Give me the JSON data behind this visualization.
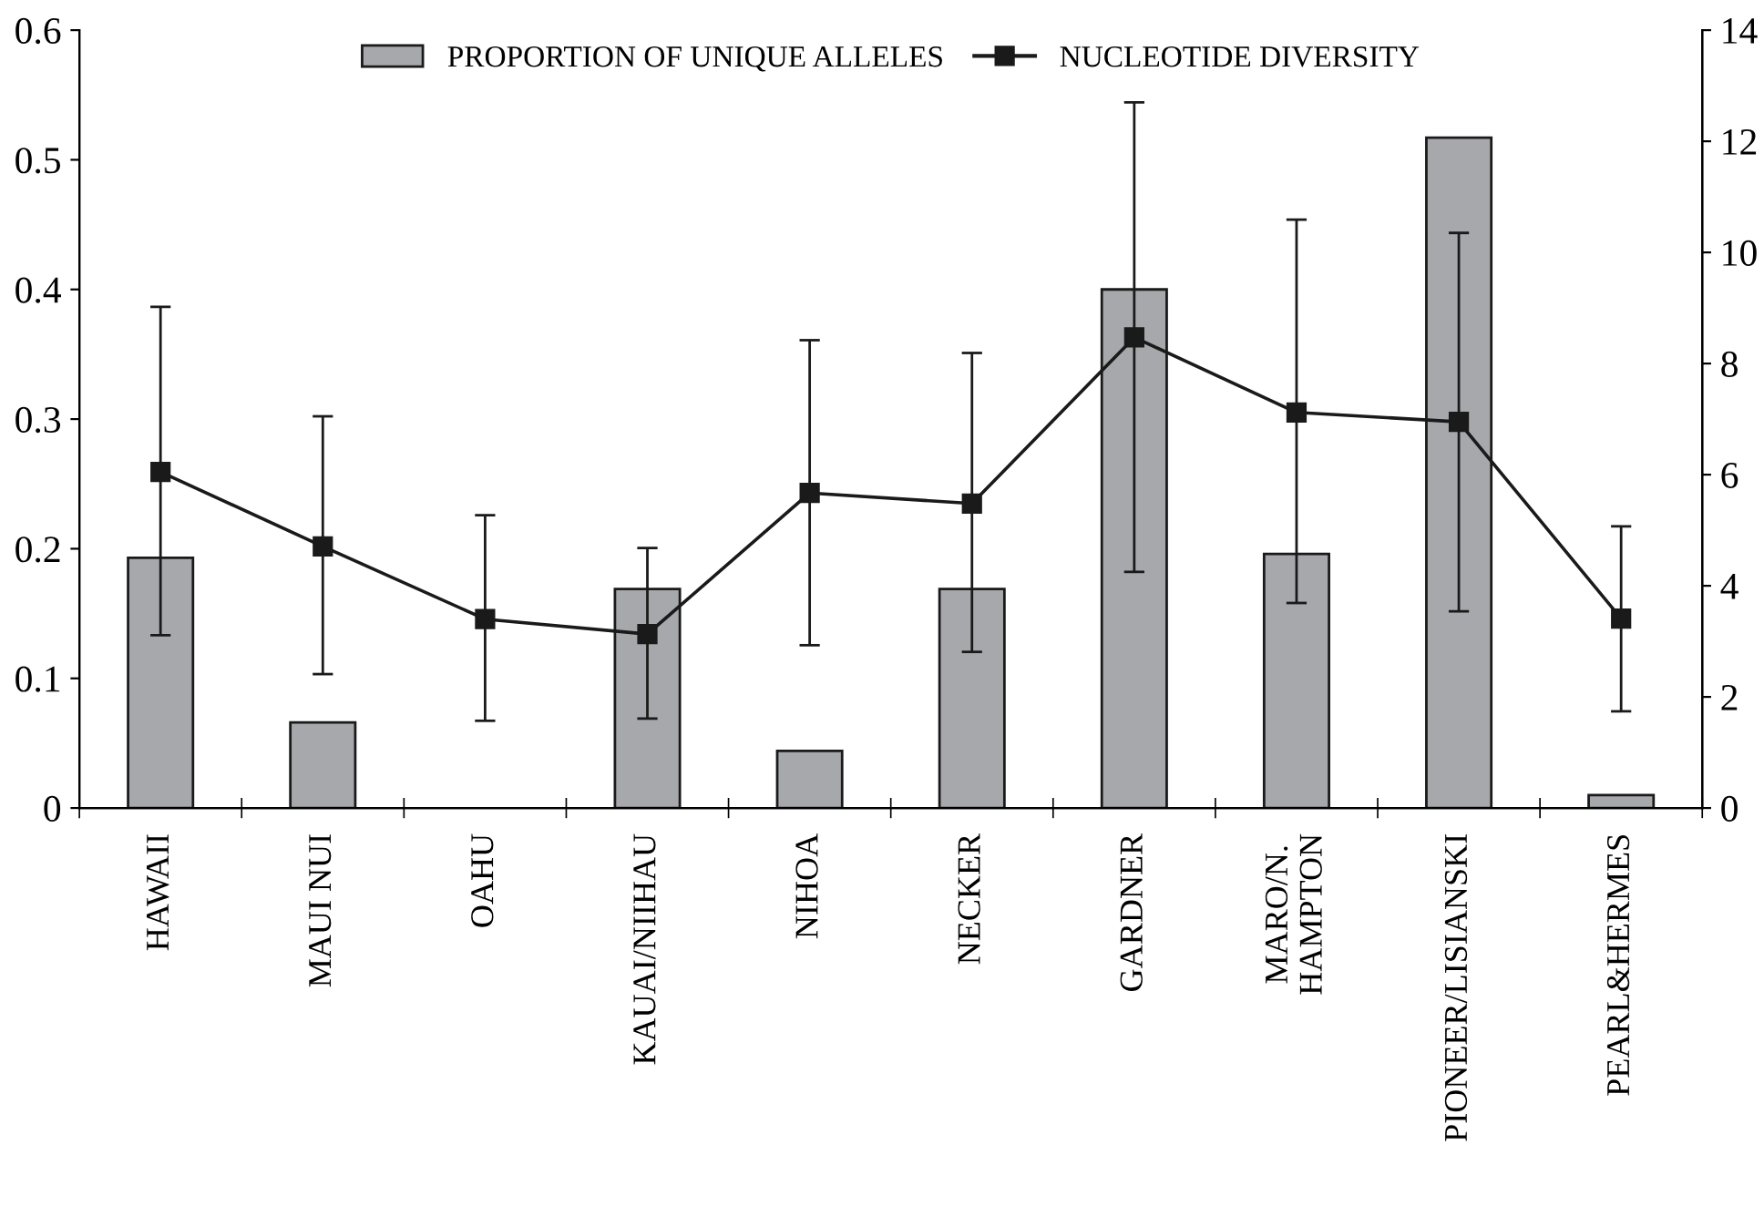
{
  "chart_data": {
    "type": "bar",
    "categories": [
      "HAWAII",
      "MAUI NUI",
      "OAHU",
      "KAUAI/NIIHAU",
      "NIHOA",
      "NECKER",
      "GARDNER",
      "MARO/N.\nHAMPTON",
      "PIONEER/LISIANSKI",
      "PEARL&HERMES"
    ],
    "series": [
      {
        "name": "PROPORTION OF UNIQUE ALLELES",
        "color": "#a7a8ac",
        "values": [
          0.193,
          0.066,
          null,
          0.169,
          0.044,
          0.169,
          0.4,
          0.196,
          0.517,
          0.01
        ]
      },
      {
        "name": "NUCLEOTIDE DIVERSITY",
        "type": "line",
        "axis": "y2",
        "color": "#1a1a1a",
        "marker": "square",
        "values": [
          6.05,
          4.71,
          3.4,
          3.13,
          5.67,
          5.48,
          8.47,
          7.12,
          6.95,
          3.41
        ],
        "errors": [
          [
            3.11,
            9.02
          ],
          [
            2.41,
            7.05
          ],
          [
            1.57,
            5.27
          ],
          [
            1.61,
            4.68
          ],
          [
            2.93,
            8.42
          ],
          [
            2.81,
            8.19
          ],
          [
            4.25,
            12.7
          ],
          [
            3.69,
            10.59
          ],
          [
            3.54,
            10.35
          ],
          [
            1.74,
            5.07
          ]
        ]
      }
    ],
    "ylim": [
      0,
      0.6
    ],
    "yticks": [
      0,
      0.1,
      0.2,
      0.3,
      0.4,
      0.5,
      0.6
    ],
    "y2lim": [
      0,
      14
    ],
    "y2ticks": [
      0,
      2,
      4,
      6,
      8,
      10,
      12,
      14
    ],
    "legend": "top",
    "grid": false
  }
}
